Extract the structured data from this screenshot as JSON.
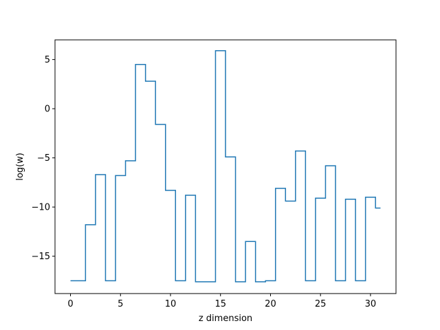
{
  "chart_data": {
    "type": "line",
    "drawstyle": "steps-mid",
    "title": "",
    "xlabel": "z dimension",
    "ylabel": "log(w)",
    "xlim": [
      -1.55,
      32.55
    ],
    "ylim": [
      -18.8,
      7.0
    ],
    "xticks": [
      0,
      5,
      10,
      15,
      20,
      25,
      30
    ],
    "xtick_labels": [
      "0",
      "5",
      "10",
      "15",
      "20",
      "25",
      "30"
    ],
    "yticks": [
      5,
      0,
      -5,
      -10,
      -15
    ],
    "ytick_labels": [
      "5",
      "0",
      "−5",
      "−10",
      "−15"
    ],
    "grid": false,
    "legend": "none",
    "series": [
      {
        "color": "#1f77b4",
        "x": [
          0,
          1,
          2,
          3,
          4,
          5,
          6,
          7,
          8,
          9,
          10,
          11,
          12,
          13,
          14,
          15,
          16,
          17,
          18,
          19,
          20,
          21,
          22,
          23,
          24,
          25,
          26,
          27,
          28,
          29,
          30,
          31
        ],
        "y": [
          -17.5,
          -17.5,
          -11.8,
          -6.7,
          -17.5,
          -6.8,
          -5.3,
          4.5,
          2.8,
          -1.6,
          -8.3,
          -17.5,
          -8.8,
          -17.6,
          -17.6,
          5.9,
          -4.9,
          -17.6,
          -13.5,
          -17.6,
          -17.5,
          -8.1,
          -9.4,
          -4.3,
          -17.5,
          -9.1,
          -5.8,
          -17.5,
          -9.2,
          -17.5,
          -9.0,
          -10.1
        ]
      }
    ]
  }
}
